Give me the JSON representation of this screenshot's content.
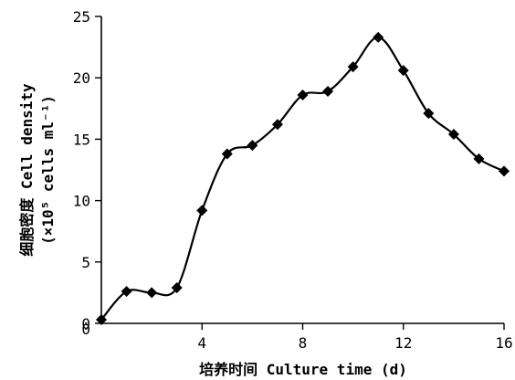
{
  "chart_data": {
    "type": "line",
    "xlabel": "培养时间 Culture time (d)",
    "ylabel_line1": "细胞密度 Cell density",
    "ylabel_line2": "(×10⁵ cells ml⁻¹)",
    "xlim": [
      0,
      16
    ],
    "ylim": [
      0,
      25
    ],
    "x_ticks": [
      4,
      8,
      12,
      16
    ],
    "x_tick_labels": [
      "4",
      "8",
      "12",
      "16"
    ],
    "x_origin_label": "0",
    "y_ticks": [
      0,
      5,
      10,
      15,
      20,
      25
    ],
    "y_tick_labels": [
      "0",
      "5",
      "10",
      "15",
      "20",
      "25"
    ],
    "grid": false,
    "marker": "diamond",
    "series": [
      {
        "x": [
          0,
          1,
          2,
          3,
          4,
          5,
          6,
          7,
          8,
          9,
          10,
          11,
          12,
          13,
          14,
          15,
          16
        ],
        "y": [
          0.3,
          2.6,
          2.5,
          2.9,
          9.2,
          13.8,
          14.5,
          16.2,
          18.6,
          18.9,
          20.9,
          23.3,
          20.6,
          17.1,
          15.4,
          13.4,
          12.4
        ]
      }
    ]
  }
}
